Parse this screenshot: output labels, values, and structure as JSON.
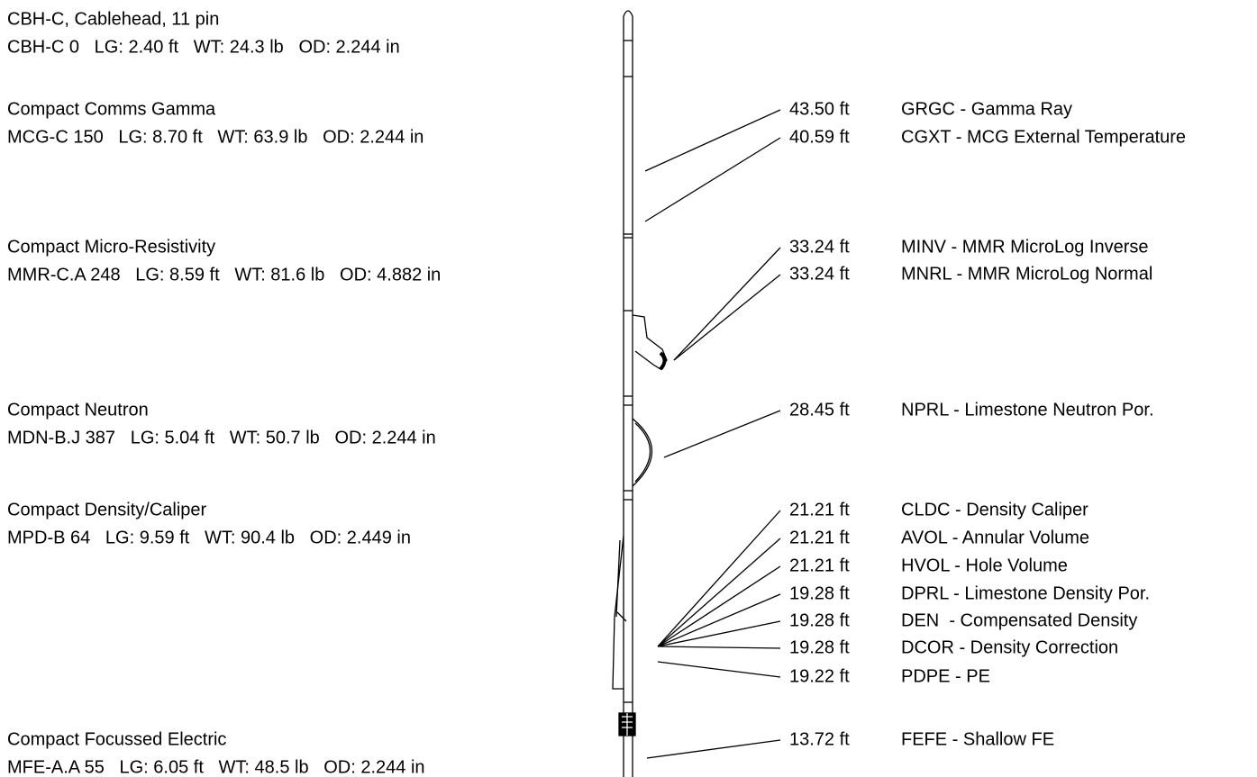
{
  "tools": [
    {
      "name": "CBH-C, Cablehead, 11 pin",
      "spec": "CBH-C 0   LG: 2.40 ft   WT: 24.3 lb   OD: 2.244 in"
    },
    {
      "name": "Compact Comms Gamma",
      "spec": "MCG-C 150   LG: 8.70 ft   WT: 63.9 lb   OD: 2.244 in"
    },
    {
      "name": "Compact Micro-Resistivity",
      "spec": "MMR-C.A 248   LG: 8.59 ft   WT: 81.6 lb   OD: 4.882 in"
    },
    {
      "name": "Compact Neutron",
      "spec": "MDN-B.J 387   LG: 5.04 ft   WT: 50.7 lb   OD: 2.244 in"
    },
    {
      "name": "Compact Density/Caliper",
      "spec": "MPD-B 64   LG: 9.59 ft   WT: 90.4 lb   OD: 2.449 in"
    },
    {
      "name": "Compact Focussed Electric",
      "spec": "MFE-A.A 55   LG: 6.05 ft   WT: 48.5 lb   OD: 2.244 in"
    }
  ],
  "measurements": [
    {
      "depth": "43.50 ft",
      "label": "GRGC - Gamma Ray"
    },
    {
      "depth": "40.59 ft",
      "label": "CGXT - MCG External Temperature"
    },
    {
      "depth": "33.24 ft",
      "label": "MINV - MMR MicroLog Inverse"
    },
    {
      "depth": "33.24 ft",
      "label": "MNRL - MMR MicroLog Normal"
    },
    {
      "depth": "28.45 ft",
      "label": "NPRL - Limestone Neutron Por."
    },
    {
      "depth": "21.21 ft",
      "label": "CLDC - Density Caliper"
    },
    {
      "depth": "21.21 ft",
      "label": "AVOL - Annular Volume"
    },
    {
      "depth": "21.21 ft",
      "label": "HVOL - Hole Volume"
    },
    {
      "depth": "19.28 ft",
      "label": "DPRL - Limestone Density Por."
    },
    {
      "depth": "19.28 ft",
      "label": "DEN  - Compensated Density"
    },
    {
      "depth": "19.28 ft",
      "label": "DCOR - Density Correction"
    },
    {
      "depth": "19.22 ft",
      "label": "PDPE - PE"
    },
    {
      "depth": "13.72 ft",
      "label": "FEFE - Shallow FE"
    }
  ]
}
